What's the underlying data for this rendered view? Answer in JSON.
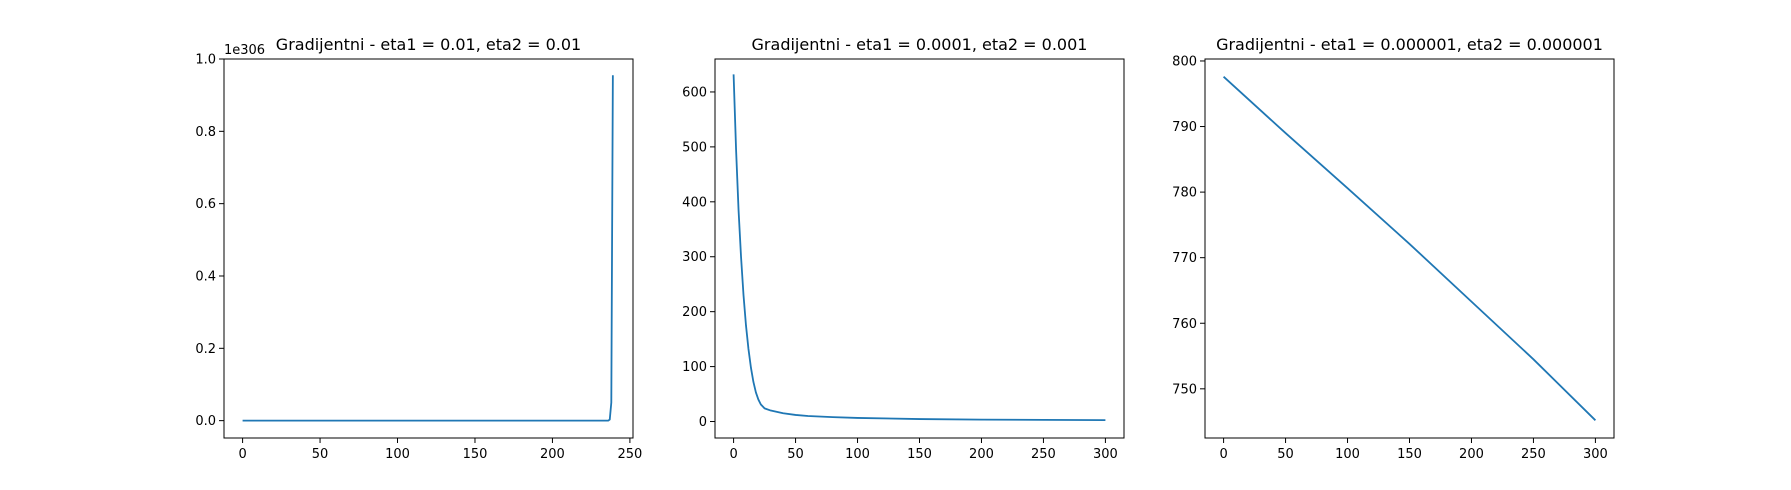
{
  "chart_data": [
    {
      "type": "line",
      "title": "Gradijentni - eta1 = 0.01, eta2 = 0.01",
      "xlabel": "",
      "ylabel": "",
      "offset_text": "1e306",
      "xlim": [
        -12,
        252
      ],
      "ylim": [
        -0.048,
        1.0
      ],
      "xticks": [
        0,
        50,
        100,
        150,
        200,
        250
      ],
      "yticks": [
        0.0,
        0.2,
        0.4,
        0.6,
        0.8,
        1.0
      ],
      "ytick_labels": [
        "0.0",
        "0.2",
        "0.4",
        "0.6",
        "0.8",
        "1.0"
      ],
      "grid": false,
      "color": "#1f77b4",
      "series": [
        {
          "x": [
            0,
            50,
            100,
            150,
            200,
            236,
            237,
            238,
            239
          ],
          "y": [
            0,
            0,
            0,
            0,
            0,
            0.0,
            0.003,
            0.05,
            0.955
          ]
        }
      ]
    },
    {
      "type": "line",
      "title": "Gradijentni - eta1 = 0.0001, eta2 = 0.001",
      "xlabel": "",
      "ylabel": "",
      "xlim": [
        -15,
        315
      ],
      "ylim": [
        -30,
        660
      ],
      "xticks": [
        0,
        50,
        100,
        150,
        200,
        250,
        300
      ],
      "yticks": [
        0,
        100,
        200,
        300,
        400,
        500,
        600
      ],
      "ytick_labels": [
        "0",
        "100",
        "200",
        "300",
        "400",
        "500",
        "600"
      ],
      "grid": false,
      "color": "#1f77b4",
      "series": [
        {
          "x": [
            0,
            2,
            4,
            6,
            8,
            10,
            12,
            14,
            16,
            18,
            20,
            22,
            25,
            30,
            40,
            50,
            60,
            80,
            100,
            150,
            200,
            250,
            300
          ],
          "y": [
            632,
            495,
            385,
            300,
            230,
            175,
            132,
            98,
            72,
            53,
            40,
            31,
            24,
            20,
            15,
            12,
            10,
            8,
            6.5,
            4.5,
            3.5,
            3,
            2.5
          ]
        }
      ]
    },
    {
      "type": "line",
      "title": "Gradijentni - eta1 = 0.000001, eta2 = 0.000001",
      "xlabel": "",
      "ylabel": "",
      "xlim": [
        -15,
        315
      ],
      "ylim": [
        742.5,
        800.3
      ],
      "xticks": [
        0,
        50,
        100,
        150,
        200,
        250,
        300
      ],
      "yticks": [
        750,
        760,
        770,
        780,
        790,
        800
      ],
      "ytick_labels": [
        "750",
        "760",
        "770",
        "780",
        "790",
        "800"
      ],
      "grid": false,
      "color": "#1f77b4",
      "series": [
        {
          "x": [
            0,
            50,
            100,
            150,
            200,
            250,
            300
          ],
          "y": [
            797.6,
            789.0,
            780.6,
            772.1,
            763.3,
            754.5,
            745.2
          ]
        }
      ]
    }
  ]
}
